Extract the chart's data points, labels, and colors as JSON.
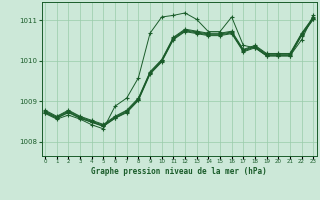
{
  "background_color": "#cce8d8",
  "grid_color": "#99ccaa",
  "line_color": "#1a5c2a",
  "marker_color": "#1a5c2a",
  "title": "Graphe pression niveau de la mer (hPa)",
  "xlabel_ticks": [
    0,
    1,
    2,
    3,
    4,
    5,
    6,
    7,
    8,
    9,
    10,
    11,
    12,
    13,
    14,
    15,
    16,
    17,
    18,
    19,
    20,
    21,
    22,
    23
  ],
  "ylim": [
    1007.65,
    1011.45
  ],
  "yticks": [
    1008,
    1009,
    1010,
    1011
  ],
  "series": [
    [
      1008.72,
      1008.58,
      1008.72,
      1008.58,
      1008.48,
      1008.38,
      1008.58,
      1008.72,
      1009.02,
      1009.67,
      1009.97,
      1010.52,
      1010.72,
      1010.67,
      1010.62,
      1010.62,
      1010.67,
      1010.22,
      1010.32,
      1010.12,
      1010.12,
      1010.12,
      1010.62,
      1011.02
    ],
    [
      1008.74,
      1008.59,
      1008.74,
      1008.59,
      1008.49,
      1008.39,
      1008.59,
      1008.74,
      1009.04,
      1009.69,
      1009.99,
      1010.54,
      1010.74,
      1010.69,
      1010.64,
      1010.64,
      1010.69,
      1010.24,
      1010.34,
      1010.14,
      1010.14,
      1010.14,
      1010.64,
      1011.04
    ],
    [
      1008.76,
      1008.61,
      1008.76,
      1008.61,
      1008.51,
      1008.41,
      1008.61,
      1008.76,
      1009.06,
      1009.71,
      1010.01,
      1010.56,
      1010.76,
      1010.71,
      1010.66,
      1010.66,
      1010.71,
      1010.26,
      1010.36,
      1010.16,
      1010.16,
      1010.16,
      1010.66,
      1011.06
    ],
    [
      1008.78,
      1008.63,
      1008.78,
      1008.63,
      1008.53,
      1008.43,
      1008.63,
      1008.78,
      1009.08,
      1009.73,
      1010.03,
      1010.58,
      1010.78,
      1010.73,
      1010.68,
      1010.68,
      1010.73,
      1010.28,
      1010.38,
      1010.18,
      1010.18,
      1010.18,
      1010.68,
      1011.08
    ],
    [
      1008.7,
      1008.56,
      1008.66,
      1008.56,
      1008.42,
      1008.32,
      1008.88,
      1009.08,
      1009.58,
      1010.68,
      1011.08,
      1011.12,
      1011.18,
      1011.02,
      1010.72,
      1010.72,
      1011.08,
      1010.38,
      1010.32,
      1010.12,
      1010.12,
      1010.12,
      1010.52,
      1011.12
    ]
  ]
}
